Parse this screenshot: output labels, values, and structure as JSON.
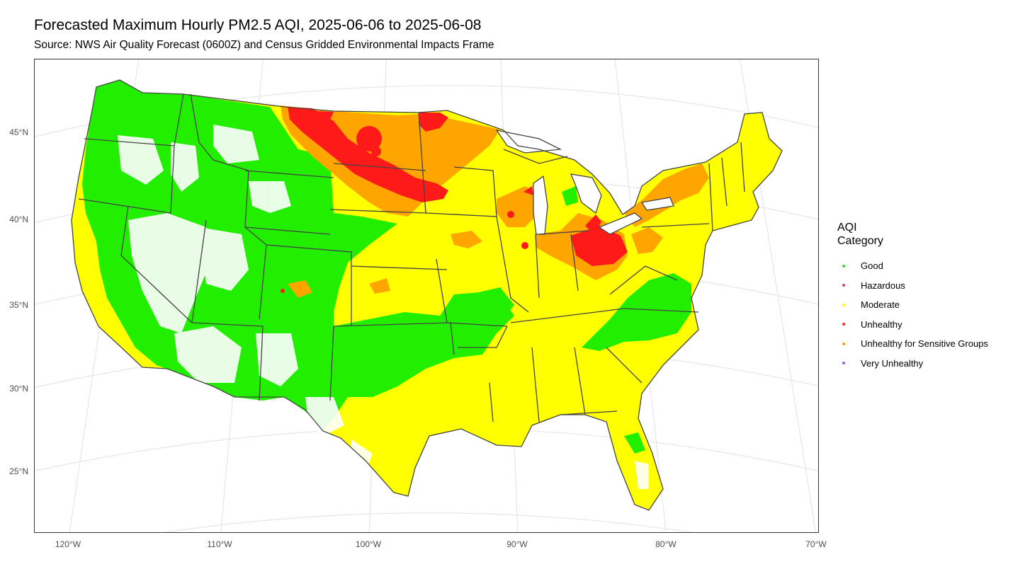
{
  "title": "Forecasted Maximum Hourly PM2.5 AQI, 2025-06-06 to 2025-06-08",
  "subtitle": "Source: NWS Air Quality Forecast (0600Z) and Census Gridded Environmental Impacts Frame",
  "axes": {
    "lat_labels": [
      "45°N",
      "40°N",
      "35°N",
      "30°N",
      "25°N"
    ],
    "lon_labels": [
      "120°W",
      "110°W",
      "100°W",
      "90°W",
      "80°W",
      "70°W"
    ]
  },
  "legend": {
    "title_line1": "AQI",
    "title_line2": "Category",
    "items": [
      {
        "label": "Good",
        "color": "#33dd22"
      },
      {
        "label": "Hazardous",
        "color": "#e0405a"
      },
      {
        "label": "Moderate",
        "color": "#ffff00"
      },
      {
        "label": "Unhealthy",
        "color": "#ff2a1a"
      },
      {
        "label": "Unhealthy for Sensitive Groups",
        "color": "#ff9f00"
      },
      {
        "label": "Very Unhealthy",
        "color": "#9b5fe0"
      }
    ]
  },
  "colors": {
    "good": "#22ee00",
    "moderate": "#ffff00",
    "usg": "#ffa500",
    "unhealthy": "#ff1a1a",
    "state_border": "#444444",
    "graticule": "#e6e6e6"
  }
}
